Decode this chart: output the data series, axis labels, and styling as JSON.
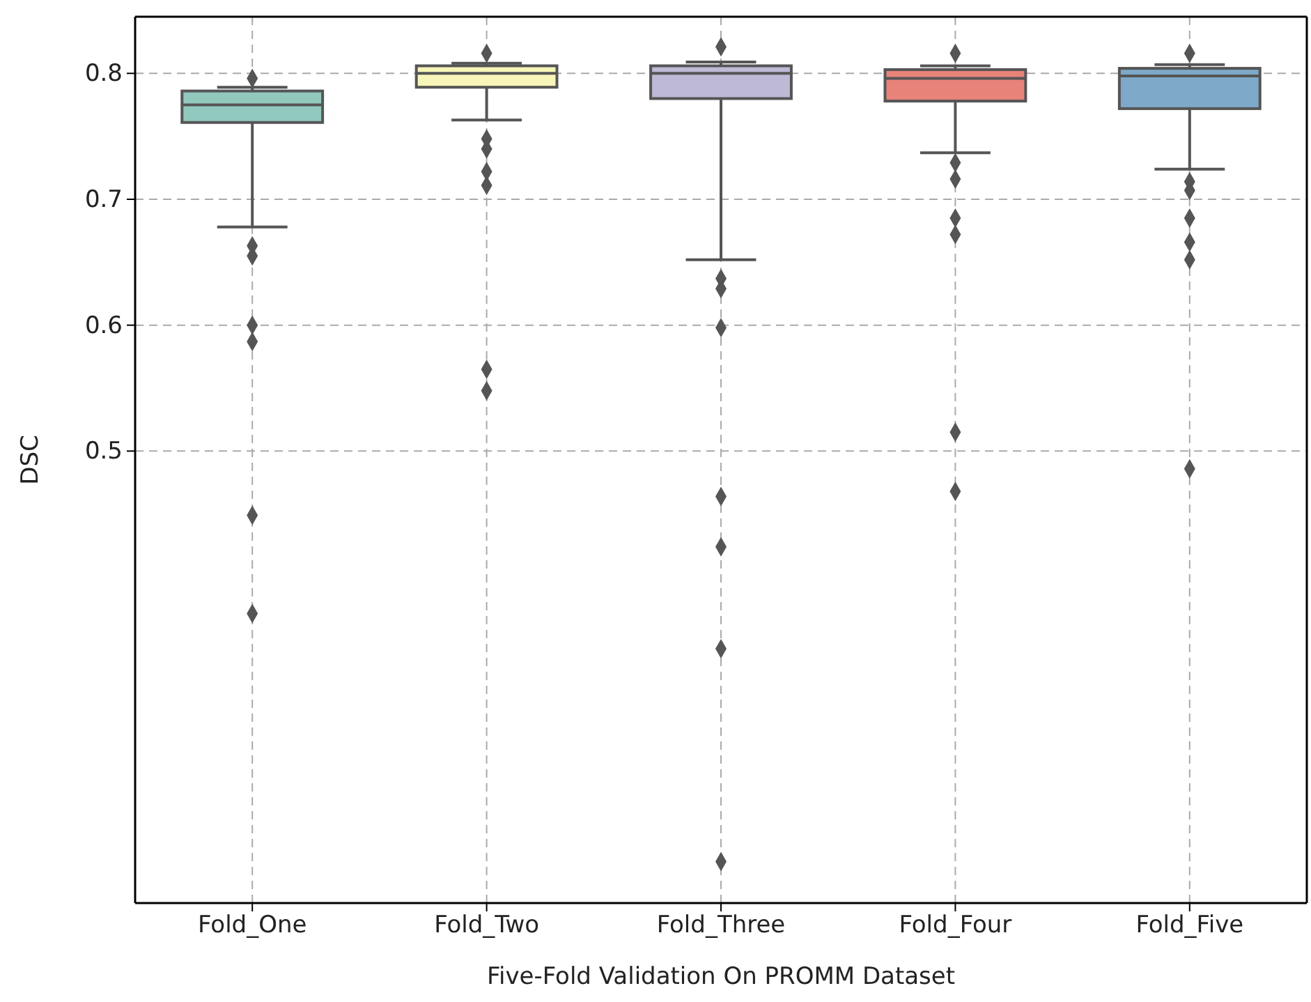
{
  "chart_data": {
    "type": "box",
    "xlabel": "Five-Fold Validation On PROMM Dataset",
    "ylabel": "DSC",
    "categories": [
      "Fold_One",
      "Fold_Two",
      "Fold_Three",
      "Fold_Four",
      "Fold_Five"
    ],
    "colors": [
      "#92c9bf",
      "#f7f5b8",
      "#bebad6",
      "#e8837a",
      "#7ea9c9"
    ],
    "boxes": [
      {
        "low": 0.678,
        "q1": 0.761,
        "median": 0.775,
        "q3": 0.786,
        "high": 0.789,
        "outliers": [
          0.796,
          0.663,
          0.655,
          0.6,
          0.587,
          0.449,
          0.371
        ]
      },
      {
        "low": 0.763,
        "q1": 0.789,
        "median": 0.8,
        "q3": 0.806,
        "high": 0.808,
        "outliers": [
          0.816,
          0.748,
          0.74,
          0.722,
          0.711,
          0.565,
          0.548
        ]
      },
      {
        "low": 0.652,
        "q1": 0.78,
        "median": 0.8,
        "q3": 0.806,
        "high": 0.809,
        "outliers": [
          0.821,
          0.637,
          0.629,
          0.598,
          0.464,
          0.424,
          0.343,
          0.174
        ]
      },
      {
        "low": 0.737,
        "q1": 0.778,
        "median": 0.796,
        "q3": 0.803,
        "high": 0.806,
        "outliers": [
          0.816,
          0.729,
          0.716,
          0.685,
          0.672,
          0.515,
          0.468
        ]
      },
      {
        "low": 0.724,
        "q1": 0.772,
        "median": 0.798,
        "q3": 0.804,
        "high": 0.807,
        "outliers": [
          0.816,
          0.714,
          0.707,
          0.685,
          0.666,
          0.652,
          0.486
        ]
      }
    ],
    "ylim": [
      0.141,
      0.845
    ],
    "yticks": [
      0.5,
      0.6,
      0.7,
      0.8
    ],
    "grid": true
  }
}
